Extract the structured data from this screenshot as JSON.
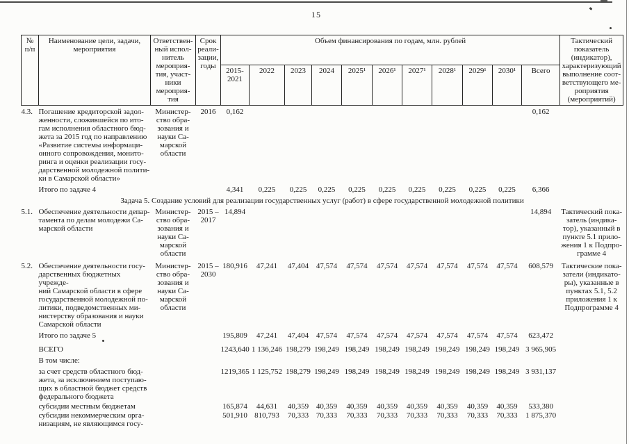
{
  "page": {
    "number": "15"
  },
  "table": {
    "header": {
      "col_num": "№\nп/п",
      "col_name": "Наименование цели, задачи,\nмероприятия",
      "col_executor": "Ответствен-\nный испол-\nнитель\nмероприя-\nтия, участ-\nники\nмероприя-\nтия",
      "col_period": "Срок\nреали-\nзации,\nгоды",
      "col_funding": "Объем финансирования по годам, млн. рублей",
      "col_tactical": "Тактический\nпоказатель\n(индикатор),\nхарактеризующий\nвыполнение соот-\nветствующего ме-\nроприятия\n(мероприятий)",
      "years": [
        "2015-\n2021",
        "2022",
        "2023",
        "2024",
        "2025¹",
        "2026¹",
        "2027¹",
        "2028¹",
        "2029¹",
        "2030¹",
        "Всего"
      ]
    },
    "rows": [
      {
        "type": "item",
        "num": "4.3.",
        "name": "Погашение кредиторской задол-\nженности, сложившейся по ито-\nгам исполнения областного бюд-\nжета за 2015 год по направлению\n«Развитие системы информаци-\nонного сопровождения, монито-\nринга и оценки реализации госу-\nдарственной молодежной полити-\nки в Самарской области»",
        "executor": "Министер-\nство обра-\nзования и\nнауки Са-\nмарской\nобласти",
        "period": "2016",
        "values": [
          "0,162",
          "",
          "",
          "",
          "",
          "",
          "",
          "",
          "",
          "",
          "0,162"
        ],
        "tactical": ""
      },
      {
        "type": "total",
        "num": "",
        "name": "Итого по задаче 4",
        "executor": "",
        "period": "",
        "values": [
          "4,341",
          "0,225",
          "0,225",
          "0,225",
          "0,225",
          "0,225",
          "0,225",
          "0,225",
          "0,225",
          "0,225",
          "6,366"
        ],
        "tactical": ""
      },
      {
        "type": "section",
        "text": "Задача 5. Создание условий для реализации государственных услуг (работ) в сфере государственной молодежной политики"
      },
      {
        "type": "item",
        "num": "5.1.",
        "name": "Обеспечение деятельности депар-\nтамента по делам молодежи Са-\nмарской области",
        "executor": "Министер-\nство обра-\nзования и\nнауки Са-\nмарской\nобласти",
        "period": "2015 –\n2017",
        "values": [
          "14,894",
          "",
          "",
          "",
          "",
          "",
          "",
          "",
          "",
          "",
          "14,894"
        ],
        "tactical": "Тактический пока-\nзатель (индика-\nтор), указанный в\nпункте 5.1 прило-\nжения 1 к Подпро-\nграмме 4"
      },
      {
        "type": "item",
        "num": "5.2.",
        "name": "Обеспечение деятельности госу-\nдарственных бюджетных учрежде-\nний Самарской области в сфере\nгосударственной молодежной по-\nлитики, подведомственных ми-\nнистерству образования и науки\nСамарской области",
        "executor": "Министер-\nство обра-\nзования и\nнауки Са-\nмарской\nобласти",
        "period": "2015 –\n2030",
        "values": [
          "180,916",
          "47,241",
          "47,404",
          "47,574",
          "47,574",
          "47,574",
          "47,574",
          "47,574",
          "47,574",
          "47,574",
          "608,579"
        ],
        "tactical": "Тактические пока-\nзатели (индикато-\nры), указанные в\nпунктах 5.1, 5.2\nприложения 1 к\nПодпрограмме 4"
      },
      {
        "type": "total",
        "num": "",
        "name": "Итого по задаче 5",
        "executor": "",
        "period": "",
        "values": [
          "195,809",
          "47,241",
          "47,404",
          "47,574",
          "47,574",
          "47,574",
          "47,574",
          "47,574",
          "47,574",
          "47,574",
          "623,472"
        ],
        "tactical": ""
      },
      {
        "type": "total",
        "num": "",
        "name": "ВСЕГО",
        "executor": "",
        "period": "",
        "values": [
          "1243,640",
          "1 136,246",
          "198,279",
          "198,249",
          "198,249",
          "198,249",
          "198,249",
          "198,249",
          "198,249",
          "198,249",
          "3 965,905"
        ],
        "tactical": ""
      },
      {
        "type": "total",
        "num": "",
        "name": "В том числе:",
        "executor": "",
        "period": "",
        "values": [
          "",
          "",
          "",
          "",
          "",
          "",
          "",
          "",
          "",
          "",
          ""
        ],
        "tactical": ""
      },
      {
        "type": "total",
        "num": "",
        "name": "за счет средств областного бюд-\nжета, за исключением поступаю-\nщих в областной бюджет средств\nфедерального бюджета",
        "executor": "",
        "period": "",
        "values": [
          "1219,365",
          "1 125,752",
          "198,279",
          "198,249",
          "198,249",
          "198,249",
          "198,249",
          "198,249",
          "198,249",
          "198,249",
          "3 931,137"
        ],
        "tactical": ""
      },
      {
        "type": "total",
        "num": "",
        "name": "субсидии местным бюджетам",
        "executor": "",
        "period": "",
        "values": [
          "165,874",
          "44,631",
          "40,359",
          "40,359",
          "40,359",
          "40,359",
          "40,359",
          "40,359",
          "40,359",
          "40,359",
          "533,380"
        ],
        "tactical": ""
      },
      {
        "type": "total",
        "num": "",
        "name": "субсидии некоммерческим орга-\nнизациям, не являющимся госу-",
        "executor": "",
        "period": "",
        "values": [
          "501,910",
          "810,793",
          "70,333",
          "70,333",
          "70,333",
          "70,333",
          "70,333",
          "70,333",
          "70,333",
          "70,333",
          "1 875,370"
        ],
        "tactical": ""
      }
    ]
  }
}
